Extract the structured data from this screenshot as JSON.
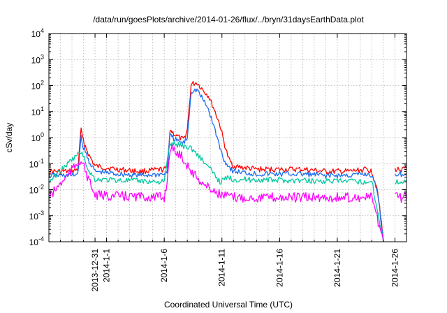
{
  "chart_data": {
    "type": "line",
    "title": "/data/run/goesPlots/archive/2014-01-26/flux/../bryn/31daysEarthData.plot",
    "xlabel": "Coordinated Universal Time (UTC)",
    "ylabel": "cSv/day",
    "yscale": "log",
    "xlim": [
      "2013-12-27",
      "2014-01-27"
    ],
    "ylim": [
      0.0001,
      10000
    ],
    "grid": true,
    "legend": "none",
    "x_ticks": [
      {
        "date": "2013-12-31",
        "label": "2013-12-31"
      },
      {
        "date": "2014-01-01",
        "label": "2014-1-1"
      },
      {
        "date": "2014-01-06",
        "label": "2014-1-6"
      },
      {
        "date": "2014-01-11",
        "label": "2014-1-11"
      },
      {
        "date": "2014-01-16",
        "label": "2014-1-16"
      },
      {
        "date": "2014-01-21",
        "label": "2014-1-21"
      },
      {
        "date": "2014-01-26",
        "label": "2014-1-26"
      }
    ],
    "y_ticks": [
      {
        "value": 0.0001,
        "base": "10",
        "exp": "-4"
      },
      {
        "value": 0.001,
        "base": "10",
        "exp": "-3"
      },
      {
        "value": 0.01,
        "base": "10",
        "exp": "-2"
      },
      {
        "value": 0.1,
        "base": "10",
        "exp": "-1"
      },
      {
        "value": 1,
        "base": "10",
        "exp": "0"
      },
      {
        "value": 10,
        "base": "10",
        "exp": "1"
      },
      {
        "value": 100,
        "base": "10",
        "exp": "2"
      },
      {
        "value": 1000,
        "base": "10",
        "exp": "3"
      },
      {
        "value": 10000,
        "base": "10",
        "exp": "4"
      }
    ],
    "series": [
      {
        "color": "#ff0000",
        "points": [
          [
            "2013-12-27",
            0.05
          ],
          [
            "2013-12-29",
            0.05
          ],
          [
            "2013-12-29 12:00",
            0.06
          ],
          [
            "2013-12-29 19:00",
            2.0
          ],
          [
            "2013-12-30 00:00",
            0.7
          ],
          [
            "2013-12-30 12:00",
            0.2
          ],
          [
            "2013-12-31",
            0.08
          ],
          [
            "2014-01-02",
            0.06
          ],
          [
            "2014-01-04",
            0.05
          ],
          [
            "2014-01-06",
            0.06
          ],
          [
            "2014-01-06 06:00",
            0.07
          ],
          [
            "2014-01-06 12:00",
            2.0
          ],
          [
            "2014-01-07",
            1.2
          ],
          [
            "2014-01-07 16:00",
            0.8
          ],
          [
            "2014-01-08",
            2.0
          ],
          [
            "2014-01-08 08:00",
            110
          ],
          [
            "2014-01-08 20:00",
            130
          ],
          [
            "2014-01-09 08:00",
            70
          ],
          [
            "2014-01-09 20:00",
            40
          ],
          [
            "2014-01-10 08:00",
            12
          ],
          [
            "2014-01-10 20:00",
            3.0
          ],
          [
            "2014-01-11 06:00",
            0.5
          ],
          [
            "2014-01-11 14:00",
            0.15
          ],
          [
            "2014-01-12",
            0.08
          ],
          [
            "2014-01-14",
            0.06
          ],
          [
            "2014-01-16",
            0.06
          ],
          [
            "2014-01-18",
            0.06
          ],
          [
            "2014-01-20",
            0.05
          ],
          [
            "2014-01-22",
            0.05
          ],
          [
            "2014-01-23 12:00",
            0.06
          ],
          [
            "2014-01-24",
            0.05
          ],
          [
            "2014-01-24 12:00",
            0.01
          ],
          [
            "2014-01-25 00:00",
            0.0001
          ]
        ],
        "points2": [
          [
            "2014-01-26",
            0.06
          ],
          [
            "2014-01-27",
            0.06
          ]
        ]
      },
      {
        "color": "#1a6cf0",
        "points": [
          [
            "2013-12-27",
            0.035
          ],
          [
            "2013-12-29",
            0.035
          ],
          [
            "2013-12-29 12:00",
            0.04
          ],
          [
            "2013-12-29 19:00",
            1.0
          ],
          [
            "2013-12-30 00:00",
            0.4
          ],
          [
            "2013-12-30 12:00",
            0.12
          ],
          [
            "2013-12-31",
            0.05
          ],
          [
            "2014-01-02",
            0.04
          ],
          [
            "2014-01-04",
            0.035
          ],
          [
            "2014-01-06",
            0.04
          ],
          [
            "2014-01-06 06:00",
            0.05
          ],
          [
            "2014-01-06 12:00",
            1.2
          ],
          [
            "2014-01-07",
            0.8
          ],
          [
            "2014-01-07 16:00",
            0.6
          ],
          [
            "2014-01-08",
            1.0
          ],
          [
            "2014-01-08 08:00",
            60
          ],
          [
            "2014-01-08 20:00",
            70
          ],
          [
            "2014-01-09 08:00",
            30
          ],
          [
            "2014-01-09 20:00",
            12
          ],
          [
            "2014-01-10 08:00",
            2.5
          ],
          [
            "2014-01-10 20:00",
            0.4
          ],
          [
            "2014-01-11 06:00",
            0.12
          ],
          [
            "2014-01-11 14:00",
            0.08
          ],
          [
            "2014-01-12",
            0.05
          ],
          [
            "2014-01-14",
            0.04
          ],
          [
            "2014-01-16",
            0.04
          ],
          [
            "2014-01-18",
            0.04
          ],
          [
            "2014-01-20",
            0.035
          ],
          [
            "2014-01-22",
            0.035
          ],
          [
            "2014-01-23 12:00",
            0.04
          ],
          [
            "2014-01-24",
            0.035
          ],
          [
            "2014-01-24 12:00",
            0.008
          ],
          [
            "2014-01-25 00:00",
            0.0001
          ]
        ],
        "points2": [
          [
            "2014-01-26",
            0.04
          ],
          [
            "2014-01-27",
            0.04
          ]
        ]
      },
      {
        "color": "#00c8a0",
        "points": [
          [
            "2013-12-27",
            0.02
          ],
          [
            "2013-12-29 19:00",
            0.3
          ],
          [
            "2013-12-30 12:00",
            0.05
          ],
          [
            "2013-12-31",
            0.025
          ],
          [
            "2014-01-06",
            0.02
          ],
          [
            "2014-01-06 12:00",
            0.6
          ],
          [
            "2014-01-07 12:00",
            0.5
          ],
          [
            "2014-01-08 08:00",
            0.4
          ],
          [
            "2014-01-09 00:00",
            0.2
          ],
          [
            "2014-01-10 00:00",
            0.06
          ],
          [
            "2014-01-10 20:00",
            0.02
          ],
          [
            "2014-01-11 14:00",
            0.03
          ],
          [
            "2014-01-12",
            0.025
          ],
          [
            "2014-01-24",
            0.02
          ],
          [
            "2014-01-25 00:00",
            0.0001
          ]
        ],
        "points2": [
          [
            "2014-01-26",
            0.02
          ],
          [
            "2014-01-27",
            0.02
          ]
        ]
      },
      {
        "color": "#ff00ff",
        "points": [
          [
            "2013-12-27",
            0.005
          ],
          [
            "2013-12-29 19:00",
            0.15
          ],
          [
            "2013-12-30 12:00",
            0.02
          ],
          [
            "2013-12-31",
            0.006
          ],
          [
            "2014-01-06",
            0.005
          ],
          [
            "2014-01-06 06:00",
            0.02
          ],
          [
            "2014-01-06 12:00",
            0.4
          ],
          [
            "2014-01-07 12:00",
            0.2
          ],
          [
            "2014-01-08 08:00",
            0.05
          ],
          [
            "2014-01-09 12:00",
            0.015
          ],
          [
            "2014-01-10 12:00",
            0.008
          ],
          [
            "2014-01-11 00:00",
            0.006
          ],
          [
            "2014-01-12",
            0.005
          ],
          [
            "2014-01-24",
            0.005
          ],
          [
            "2014-01-25 00:00",
            0.0001
          ]
        ],
        "points2": [
          [
            "2014-01-26",
            0.005
          ],
          [
            "2014-01-27",
            0.005
          ]
        ]
      }
    ]
  }
}
